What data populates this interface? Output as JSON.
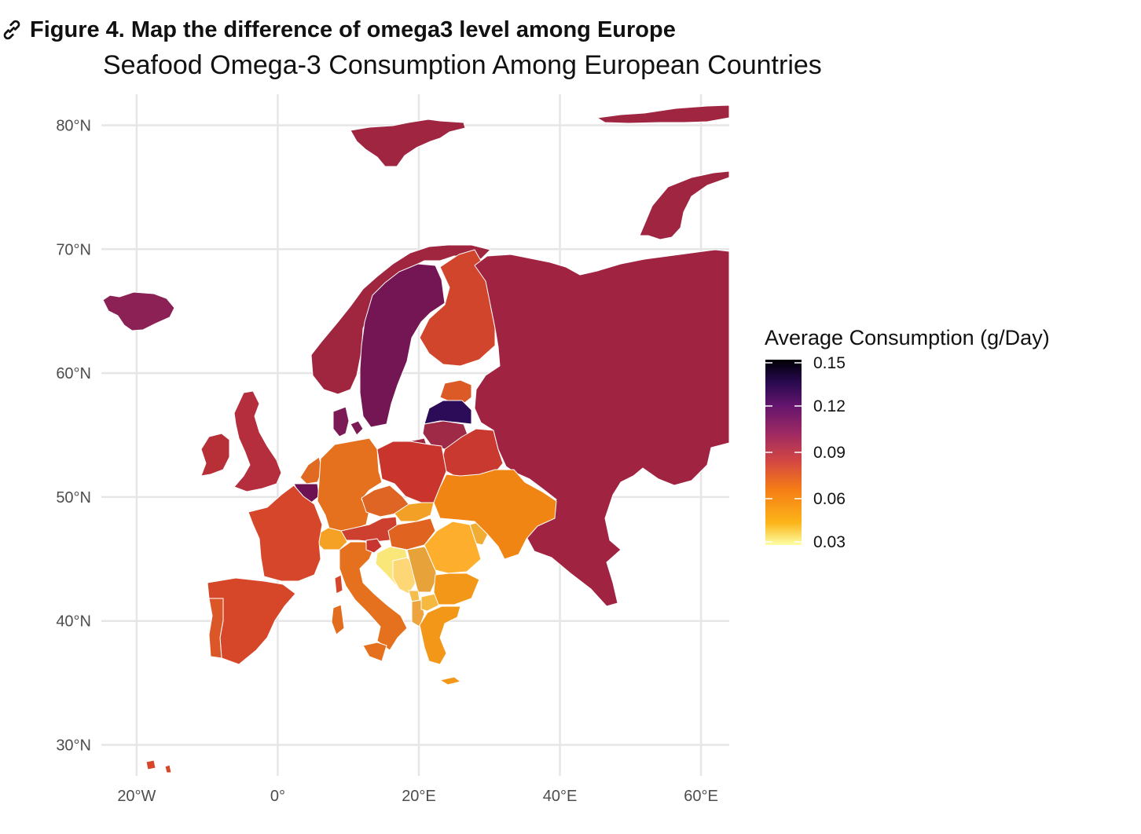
{
  "figure": {
    "caption": "Figure 4. Map the difference of omega3 level among Europe",
    "link_icon": "link-icon"
  },
  "map": {
    "title": "Seafood Omega-3 Consumption Among European Countries",
    "lon_range": [
      -25,
      64
    ],
    "lat_range": [
      27.5,
      82.5
    ],
    "x_ticks": [
      {
        "value": -20,
        "label": "20°W"
      },
      {
        "value": 0,
        "label": "0°"
      },
      {
        "value": 20,
        "label": "20°E"
      },
      {
        "value": 40,
        "label": "40°E"
      },
      {
        "value": 60,
        "label": "60°E"
      }
    ],
    "y_ticks": [
      {
        "value": 30,
        "label": "30°N"
      },
      {
        "value": 40,
        "label": "40°N"
      },
      {
        "value": 50,
        "label": "50°N"
      },
      {
        "value": 60,
        "label": "60°N"
      },
      {
        "value": 70,
        "label": "70°N"
      },
      {
        "value": 80,
        "label": "80°N"
      }
    ],
    "grid": true,
    "legend": {
      "title": "Average Consumption (g/Day)",
      "position": "right",
      "range": [
        0.03,
        0.15
      ],
      "breaks": [
        {
          "value": 0.15,
          "label": "0.15"
        },
        {
          "value": 0.12,
          "label": "0.12"
        },
        {
          "value": 0.09,
          "label": "0.09"
        },
        {
          "value": 0.06,
          "label": "0.06"
        },
        {
          "value": 0.03,
          "label": "0.03"
        }
      ],
      "palette": "inferno"
    },
    "colors": {
      "iceland": "#8b2155",
      "svalbard": "#a02540",
      "norway": "#a0253f",
      "sweden": "#751654",
      "finland": "#d1452c",
      "estonia": "#db5a26",
      "latvia": "#2c0b58",
      "lithuania": "#9f2a48",
      "russia": "#a12342",
      "belarus": "#c9392f",
      "uk": "#b52e3d",
      "ireland": "#b83037",
      "denmark": "#7c1a55",
      "netherlands": "#e06a21",
      "belgium": "#6d1152",
      "germany": "#e5701d",
      "poland": "#c9342c",
      "czechia": "#de6523",
      "slovakia": "#f2a126",
      "austria": "#cd3f2f",
      "hungary": "#e0631f",
      "switzerland": "#f5a125",
      "france": "#d6462a",
      "spain": "#d6472a",
      "portugal": "#dc5727",
      "italy": "#e5701d",
      "slovenia": "#c83531",
      "croatia": "#fae77a",
      "bih": "#fdd776",
      "serbia": "#e7a23a",
      "montenegro": "#f5bd4a",
      "romania": "#fcae2c",
      "moldova": "#f0ac33",
      "bulgaria": "#f39719",
      "greece": "#f39719",
      "albania": "#eda43f",
      "macedonia": "#f5b940",
      "ukraine": "#f08514",
      "russia_north": "#a02540",
      "kaliningrad": "#a0253f",
      "sardinia": "#e26d1e",
      "corsica": "#d6462a",
      "crete": "#f39719",
      "canary": "#d6472a"
    }
  }
}
